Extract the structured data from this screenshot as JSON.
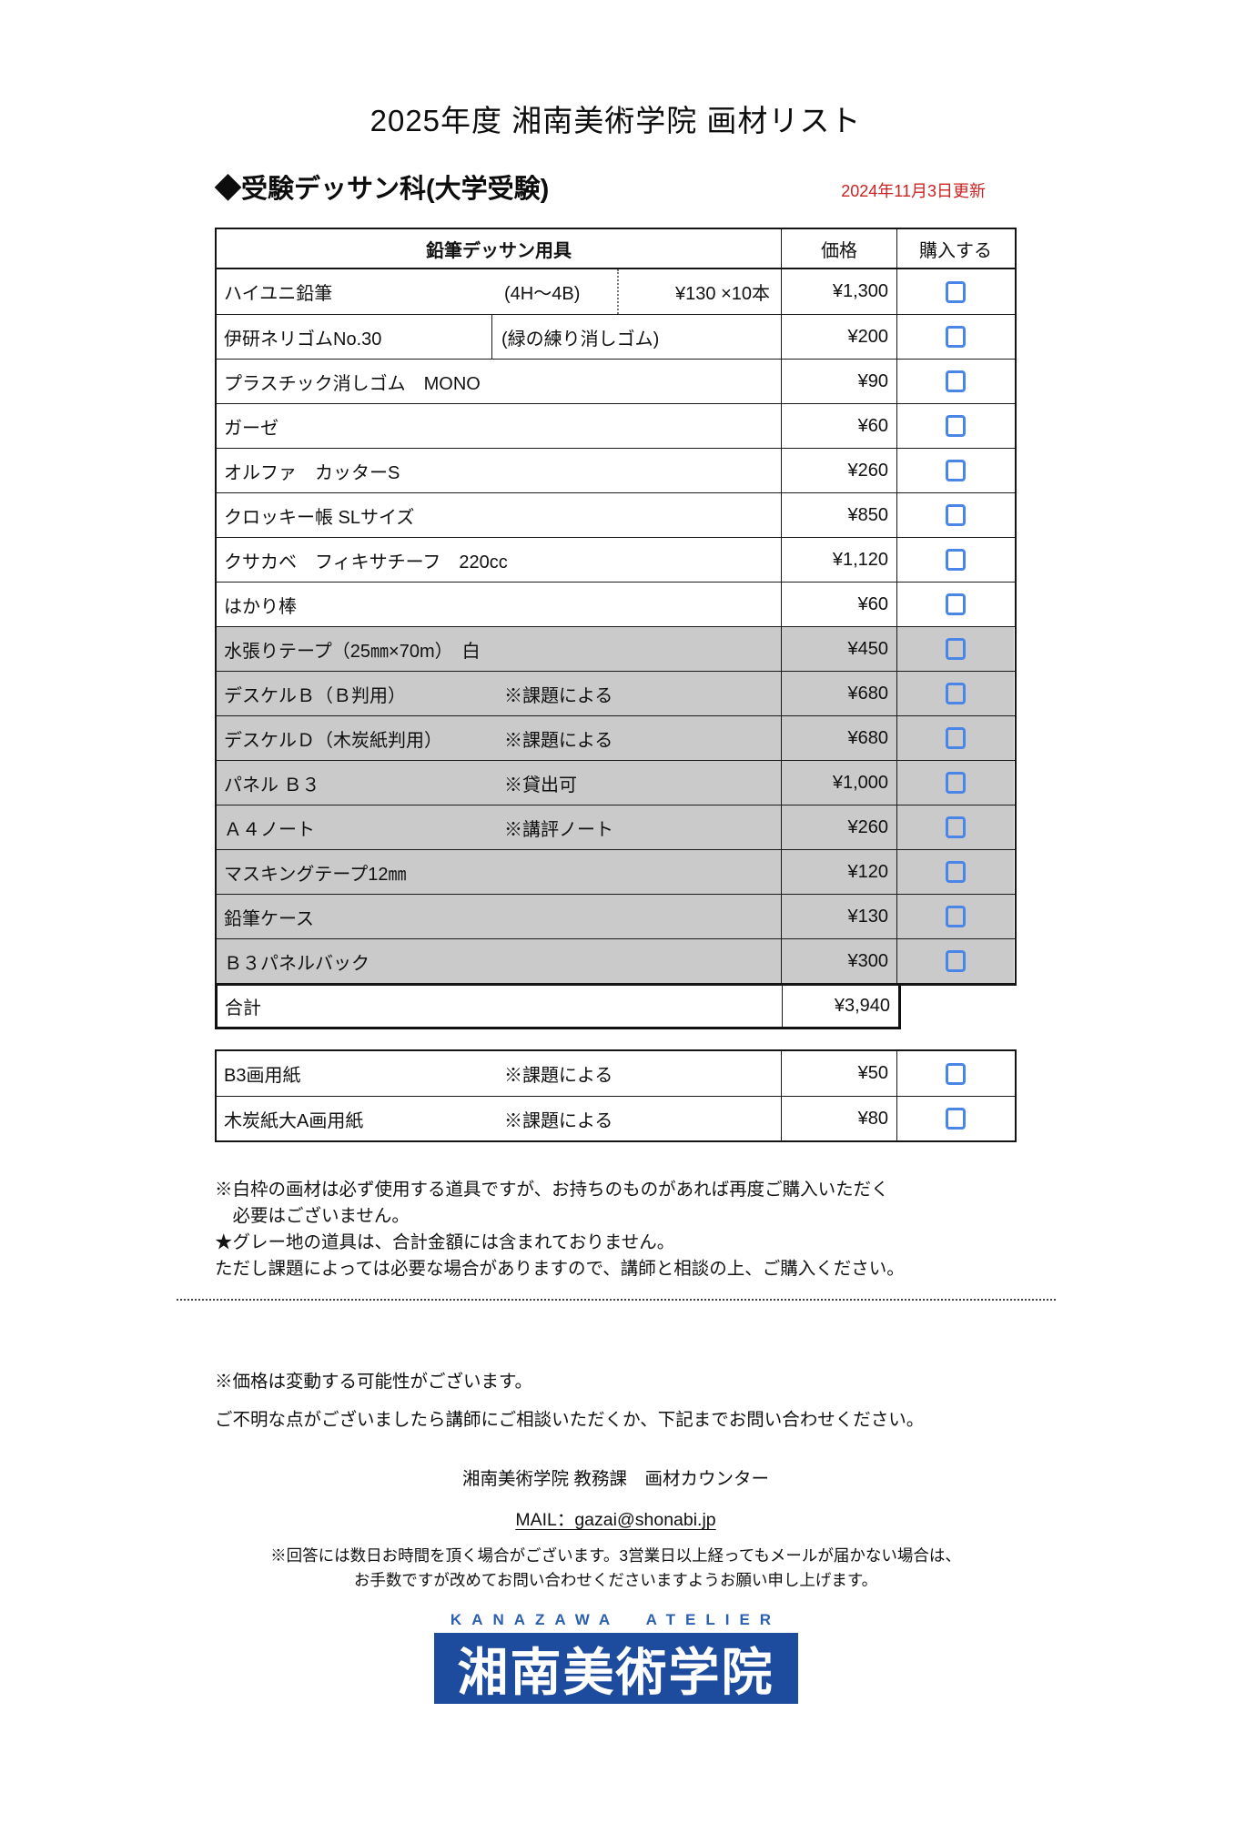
{
  "page": {
    "title": "2025年度 湘南美術学院 画材リスト",
    "section_heading": "◆受験デッサン科(大学受験)",
    "updated_date": "2024年11月3日更新"
  },
  "table1": {
    "headers": {
      "item": "鉛筆デッサン用具",
      "price": "価格",
      "purchase": "購入する"
    },
    "rows": [
      {
        "name": "ハイユニ鉛筆",
        "spec": "(4H〜4B)",
        "unit": "¥130 ×10本",
        "price": "¥1,300",
        "gray": false,
        "checked": false
      },
      {
        "name": "伊研ネリゴムNo.30",
        "note": "(緑の練り消しゴム)",
        "price": "¥200",
        "gray": false,
        "checked": false
      },
      {
        "name": "プラスチック消しゴム　MONO",
        "price": "¥90",
        "gray": false,
        "checked": false
      },
      {
        "name": "ガーゼ",
        "price": "¥60",
        "gray": false,
        "checked": false
      },
      {
        "name": "オルファ　カッターS",
        "price": "¥260",
        "gray": false,
        "checked": false
      },
      {
        "name": "クロッキー帳 SLサイズ",
        "price": "¥850",
        "gray": false,
        "checked": false
      },
      {
        "name": "クサカベ　フィキサチーフ　220cc",
        "price": "¥1,120",
        "gray": false,
        "checked": false
      },
      {
        "name": "はかり棒",
        "price": "¥60",
        "gray": false,
        "checked": false
      },
      {
        "name": "水張りテープ（25㎜×70m）　白",
        "price": "¥450",
        "gray": true,
        "checked": false
      },
      {
        "name": "デスケルＢ（Ｂ判用）",
        "note": "※課題による",
        "price": "¥680",
        "gray": true,
        "checked": false
      },
      {
        "name": "デスケルＤ（木炭紙判用）",
        "note": "※課題による",
        "price": "¥680",
        "gray": true,
        "checked": false
      },
      {
        "name": "パネル Ｂ３",
        "note": "※貸出可",
        "price": "¥1,000",
        "gray": true,
        "checked": false
      },
      {
        "name": "Ａ４ノート",
        "note": "※講評ノート",
        "price": "¥260",
        "gray": true,
        "checked": false
      },
      {
        "name": "マスキングテープ12㎜",
        "price": "¥120",
        "gray": true,
        "checked": false
      },
      {
        "name": "鉛筆ケース",
        "price": "¥130",
        "gray": true,
        "checked": false
      },
      {
        "name": "Ｂ３パネルバック",
        "price": "¥300",
        "gray": true,
        "checked": false
      }
    ],
    "total": {
      "label": "合計",
      "price": "¥3,940"
    }
  },
  "table2": {
    "rows": [
      {
        "name": "B3画用紙",
        "note": "※課題による",
        "price": "¥50",
        "gray": false,
        "checked": false
      },
      {
        "name": "木炭紙大A画用紙",
        "note": "※課題による",
        "price": "¥80",
        "gray": false,
        "checked": false
      }
    ]
  },
  "notes": {
    "line1": "※白枠の画材は必ず使用する道具ですが、お持ちのものがあれば再度ご購入いただく",
    "line2": "　必要はございません。",
    "line3": "★グレー地の道具は、合計金額には含まれておりません。",
    "line4": "ただし課題によっては必要な場合がありますので、講師と相談の上、ご購入ください。"
  },
  "footer": {
    "price_note": "※価格は変動する可能性がございます。",
    "inquiry_note": "ご不明な点がございましたら講師にご相談いただくか、下記までお問い合わせください。",
    "contact": "湘南美術学院 教務課　画材カウンター",
    "mail": "MAIL：gazai@shonabi.jp",
    "reply_note_line1": "※回答には数日お時間を頂く場合がございます。3営業日以上経ってもメールが届かない場合は、",
    "reply_note_line2": "お手数ですが改めてお問い合わせくださいますようお願い申し上げます。"
  },
  "logo": {
    "atelier": "KANAZAWA ATELIER",
    "school_name": "湘南美術学院"
  },
  "colors": {
    "checkbox_blue": "#4a86e8",
    "gray_row": "#cacaca",
    "date_red": "#cc2222",
    "logo_blue": "#1d4b9d",
    "atelier_blue": "#2b5fb0"
  }
}
